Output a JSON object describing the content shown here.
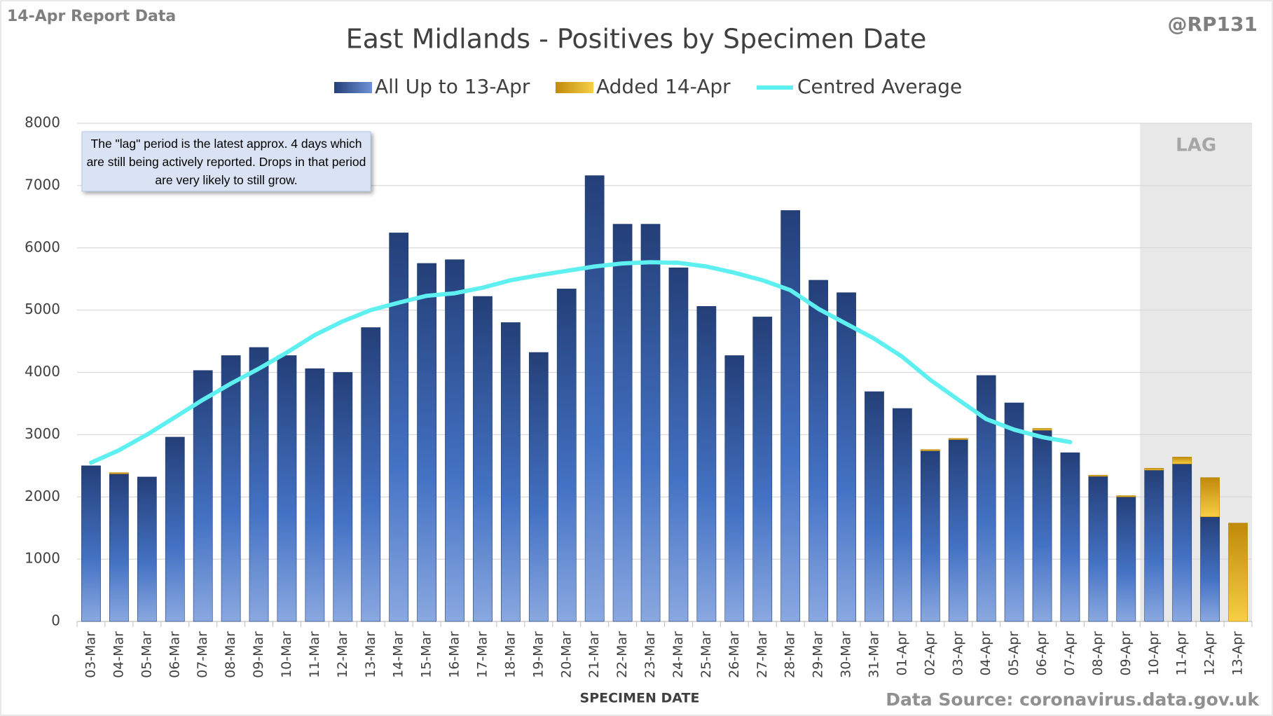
{
  "chart_data": {
    "type": "bar",
    "stacked": true,
    "title": "East Midlands - Positives by Specimen Date",
    "report_label": "14-Apr Report Data",
    "author": "@RP131",
    "source": "Data Source: coronavirus.data.gov.uk",
    "x_label": "SPECIMEN DATE",
    "annotation": "The \"lag\" period is the latest approx. 4 days which are still being actively reported.  Drops in that period are very likely to still grow.",
    "lag_label": "LAG",
    "categories": [
      "03-Mar",
      "04-Mar",
      "05-Mar",
      "06-Mar",
      "07-Mar",
      "08-Mar",
      "09-Mar",
      "10-Mar",
      "11-Mar",
      "12-Mar",
      "13-Mar",
      "14-Mar",
      "15-Mar",
      "16-Mar",
      "17-Mar",
      "18-Mar",
      "19-Mar",
      "20-Mar",
      "21-Mar",
      "22-Mar",
      "23-Mar",
      "24-Mar",
      "25-Mar",
      "26-Mar",
      "27-Mar",
      "28-Mar",
      "29-Mar",
      "30-Mar",
      "31-Mar",
      "01-Apr",
      "02-Apr",
      "03-Apr",
      "04-Apr",
      "05-Apr",
      "06-Apr",
      "07-Apr",
      "08-Apr",
      "09-Apr",
      "10-Apr",
      "11-Apr",
      "12-Apr",
      "13-Apr"
    ],
    "series": [
      {
        "name": "All Up to 13-Apr",
        "color": "#4472c4",
        "values": [
          2500,
          2370,
          2320,
          2960,
          4030,
          4270,
          4400,
          4270,
          4060,
          4000,
          4720,
          6240,
          5750,
          5810,
          5220,
          4800,
          4320,
          5340,
          7160,
          6380,
          6380,
          5680,
          5060,
          4270,
          4890,
          6600,
          5480,
          5280,
          3690,
          3420,
          2740,
          2920,
          3950,
          3510,
          3070,
          2710,
          2330,
          2000,
          2430,
          2530,
          1680,
          0
        ]
      },
      {
        "name": "Added 14-Apr",
        "color": "#f0b822",
        "values": [
          0,
          20,
          0,
          0,
          0,
          0,
          0,
          0,
          0,
          0,
          0,
          0,
          0,
          0,
          0,
          0,
          0,
          0,
          0,
          0,
          0,
          0,
          0,
          0,
          0,
          0,
          0,
          0,
          0,
          0,
          20,
          20,
          0,
          0,
          30,
          0,
          20,
          20,
          30,
          110,
          630,
          1580
        ]
      },
      {
        "name": "Centred Average",
        "color": "#5ef0f0",
        "type": "line",
        "values": [
          2550,
          2750,
          3000,
          3280,
          3560,
          3820,
          4060,
          4320,
          4600,
          4820,
          5000,
          5120,
          5230,
          5270,
          5360,
          5480,
          5560,
          5630,
          5700,
          5750,
          5770,
          5760,
          5700,
          5600,
          5480,
          5320,
          5020,
          4780,
          4540,
          4250,
          3880,
          3560,
          3250,
          3080,
          2960,
          2880,
          null,
          null,
          null,
          null,
          null,
          null
        ]
      }
    ],
    "ylim": [
      0,
      8000
    ],
    "yticks": [
      0,
      1000,
      2000,
      3000,
      4000,
      5000,
      6000,
      7000,
      8000
    ],
    "grid": true
  }
}
